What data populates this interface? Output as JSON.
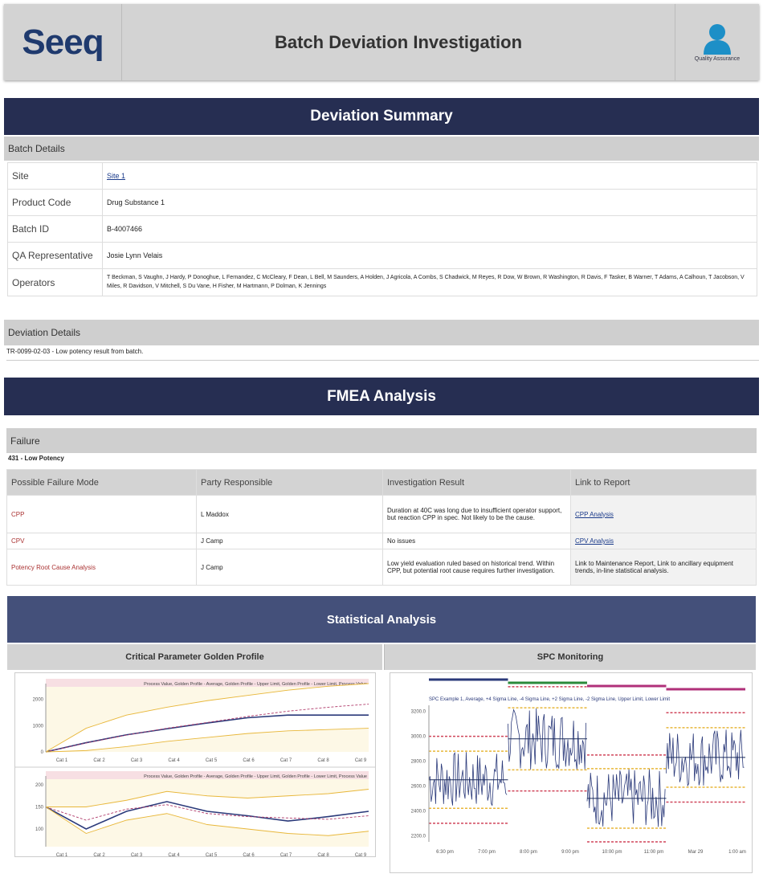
{
  "header": {
    "logo": "Seeq",
    "title": "Batch Deviation Investigation",
    "user_label": "Quality Assurance"
  },
  "summary": {
    "banner": "Deviation Summary",
    "batch_details_title": "Batch Details",
    "rows": [
      {
        "label": "Site",
        "value": "Site 1",
        "link": true
      },
      {
        "label": "Product Code",
        "value": "Drug Substance 1"
      },
      {
        "label": "Batch ID",
        "value": "B-4007466"
      },
      {
        "label": "QA Representative",
        "value": "Josie Lynn Velais"
      },
      {
        "label": "Operators",
        "value": "T Beckman, S Vaughn, J Hardy, P Donoghue, L Fernandez, C McCleary, F Dean, L Bell, M Saunders, A Holden, J Agricola, A Combs, S Chadwick, M Reyes, R Dow, W Brown, R Washington, R Davis, F Tasker, B Warner, T Adams, A Calhoun, T Jacobson, V Miles, R Davidson, V Mitchell, S Du Vane, H Fisher, M Hartmann, P Dolman, K Jennings"
      }
    ],
    "deviation_details_title": "Deviation Details",
    "deviation_text": "TR-0099-02-03 - Low potency result from batch."
  },
  "fmea": {
    "banner": "FMEA Analysis",
    "failure_title": "Failure",
    "failure_value": "431 - Low Potency",
    "columns": [
      "Possible Failure Mode",
      "Party Responsible",
      "Investigation Result",
      "Link to Report"
    ],
    "rows": [
      {
        "mode": "CPP",
        "party": "L Maddox",
        "result": "Duration at 40C was long due to insufficient operator support, but reaction CPP in spec. Not likely to be the cause.",
        "link": "CPP Analysis"
      },
      {
        "mode": "CPV",
        "party": "J Camp",
        "result": "No issues",
        "link": "CPV Analysis"
      },
      {
        "mode": "Potency Root Cause Analysis",
        "party": "J Camp",
        "result": "Low yield evaluation ruled based on historical trend. Within CPP, but potential root cause requires further investigation.",
        "link": "Link to Maintenance Report, Link to ancillary equipment trends, in-line statistical analysis."
      }
    ]
  },
  "stats": {
    "banner": "Statistical Analysis",
    "left_title": "Critical Parameter Golden Profile",
    "right_title": "SPC Monitoring"
  },
  "colors": {
    "navy": "#262e52",
    "stat_banner": "#44507a",
    "series": "#2b3a7a",
    "limit": "#e8b73a",
    "redlimit": "#d0455a"
  },
  "chart_data": [
    {
      "type": "line",
      "title": "Critical Parameter Golden Profile (top)",
      "legend": "Process Value, Golden Profile - Average, Golden Profile - Upper Limit, Golden Profile - Lower Limit, Process Value",
      "x_ticks": [
        "Cat 1",
        "Cat 2",
        "Cat 3",
        "Cat 4",
        "Cat 5",
        "Cat 6",
        "Cat 7",
        "Cat 8",
        "Cat 9"
      ],
      "y_ticks": [
        "0",
        "1000",
        "2000"
      ],
      "ylim": [
        0,
        2600
      ],
      "series": [
        {
          "name": "Process Value",
          "values": [
            0,
            350,
            650,
            880,
            1100,
            1300,
            1400,
            1400,
            1400
          ]
        },
        {
          "name": "Golden Profile - Average",
          "values": [
            0,
            340,
            640,
            900,
            1120,
            1350,
            1550,
            1700,
            1820
          ]
        },
        {
          "name": "Upper Limit",
          "values": [
            0,
            900,
            1400,
            1700,
            1950,
            2150,
            2350,
            2500,
            2600
          ]
        },
        {
          "name": "Lower Limit",
          "values": [
            0,
            50,
            200,
            400,
            550,
            700,
            800,
            850,
            900
          ]
        }
      ]
    },
    {
      "type": "line",
      "title": "Critical Parameter Golden Profile (bottom)",
      "legend": "Process Value, Golden Profile - Average, Golden Profile - Upper Limit, Golden Profile - Lower Limit, Process Value",
      "x_ticks": [
        "Cat 1",
        "Cat 2",
        "Cat 3",
        "Cat 4",
        "Cat 5",
        "Cat 6",
        "Cat 7",
        "Cat 8",
        "Cat 9"
      ],
      "y_ticks": [
        "100",
        "150",
        "200"
      ],
      "ylim": [
        60,
        220
      ],
      "series": [
        {
          "name": "Process Value",
          "values": [
            150,
            100,
            140,
            162,
            140,
            130,
            118,
            128,
            140
          ]
        },
        {
          "name": "Golden Profile - Average",
          "values": [
            150,
            120,
            145,
            155,
            135,
            128,
            125,
            122,
            130
          ]
        },
        {
          "name": "Upper Limit",
          "values": [
            150,
            150,
            165,
            185,
            175,
            170,
            175,
            180,
            190
          ]
        },
        {
          "name": "Lower Limit",
          "values": [
            150,
            90,
            120,
            135,
            110,
            100,
            90,
            85,
            95
          ]
        }
      ]
    },
    {
      "type": "scatter",
      "title": "SPC Monitoring",
      "legend": "SPC Example 1, Average, +4 Sigma Line, -4 Sigma Line, +2 Sigma Line, -2 Sigma Line, Upper Limit, Lower Limit",
      "x_ticks": [
        "6:30 pm",
        "7:00 pm",
        "8:00 pm",
        "9:00 pm",
        "10:00 pm",
        "11:00 pm",
        "Mar 29",
        "1:00 am"
      ],
      "y_ticks": [
        "3200.0",
        "3000.0",
        "2800.0",
        "2600.0",
        "2400.0",
        "2200.0"
      ],
      "ylim": [
        2150,
        3250
      ],
      "segments": [
        {
          "mean": 2650,
          "sigma2": 230,
          "limit": 350
        },
        {
          "mean": 2980,
          "sigma2": 250,
          "limit": 420
        },
        {
          "mean": 2500,
          "sigma2": 240,
          "limit": 350
        },
        {
          "mean": 2830,
          "sigma2": 240,
          "limit": 360
        }
      ]
    }
  ]
}
